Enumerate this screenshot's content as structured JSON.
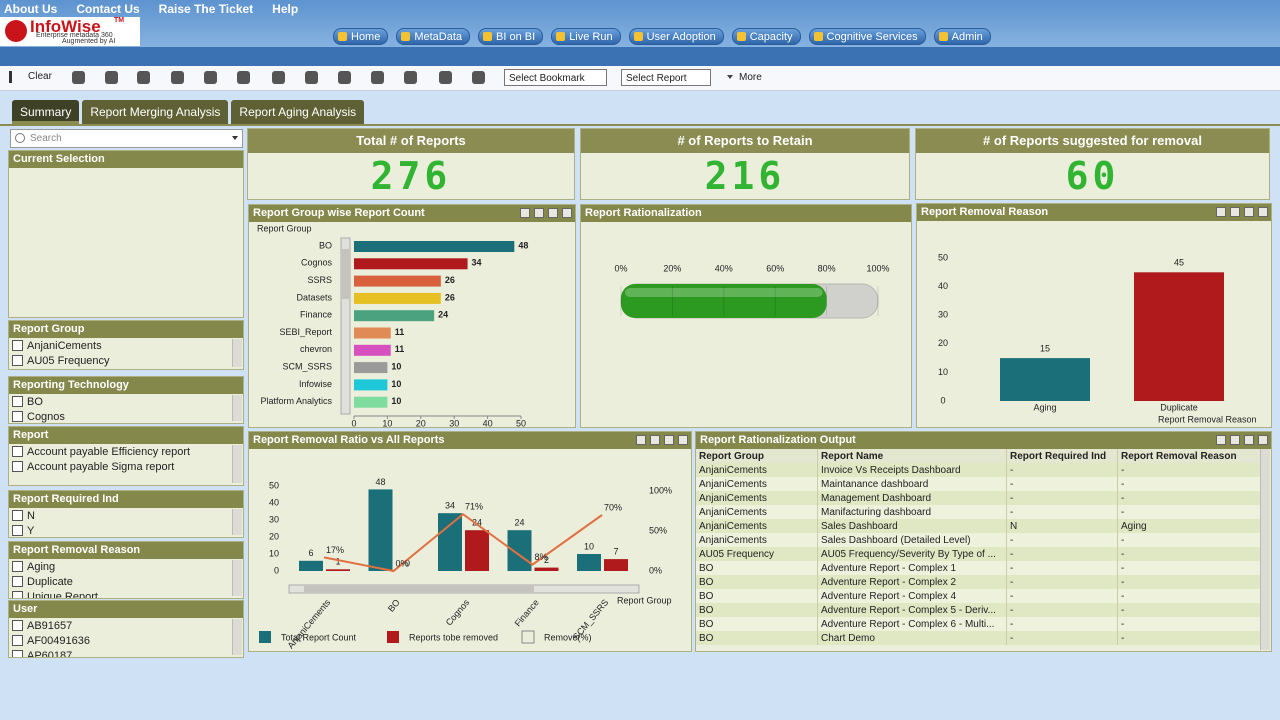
{
  "header": {
    "links": [
      "About Us",
      "Contact Us",
      "Raise The Ticket",
      "Help"
    ],
    "logo": {
      "name": "InfoWise",
      "tm": "TM",
      "tagline1": "Enterprise metadata 360",
      "tagline2": "Augmented by AI"
    },
    "nav": [
      "Home",
      "MetaData",
      "BI on BI",
      "Live Run",
      "User Adoption",
      "Capacity",
      "Cognitive Services",
      "Admin"
    ]
  },
  "toolbar": {
    "clear": "Clear",
    "bookmark": "Select Bookmark",
    "report": "Select Report",
    "more": "More"
  },
  "tabs": [
    "Summary",
    "Report Merging Analysis",
    "Report Aging Analysis"
  ],
  "sidebar": {
    "search": "Search",
    "current_selection": "Current Selection",
    "filters": [
      {
        "title": "Report Group",
        "items": [
          "AnjaniCements",
          "AU05 Frequency"
        ]
      },
      {
        "title": "Reporting Technology",
        "items": [
          "BO",
          "Cognos"
        ]
      },
      {
        "title": "Report",
        "items": [
          "Account payable Efficiency report",
          "Account payable Sigma report"
        ]
      },
      {
        "title": "Report Required Ind",
        "items": [
          "N",
          "Y"
        ]
      },
      {
        "title": "Report Removal Reason",
        "items": [
          "Aging",
          "Duplicate",
          "Unique Report"
        ]
      },
      {
        "title": "User",
        "items": [
          "AB91657",
          "AF00491636",
          "AP60187"
        ]
      }
    ]
  },
  "kpis": [
    {
      "title": "Total # of Reports",
      "value": 276
    },
    {
      "title": "# of Reports to Retain",
      "value": 216
    },
    {
      "title": "# of Reports suggested for removal",
      "value": 60
    }
  ],
  "charts": {
    "group_count": {
      "type": "bar",
      "orientation": "horizontal",
      "title": "Report Group wise Report Count",
      "axis_label": "Report Group",
      "categories": [
        "BO",
        "Cognos",
        "SSRS",
        "Datasets",
        "Finance",
        "SEBI_Report",
        "chevron",
        "SCM_SSRS",
        "Infowise",
        "Platform Analytics"
      ],
      "values": [
        48,
        34,
        26,
        26,
        24,
        11,
        11,
        10,
        10,
        10
      ],
      "colors": [
        "#1b6f78",
        "#b01a1d",
        "#d8603c",
        "#e6bf22",
        "#4aa37e",
        "#e08b55",
        "#d651bf",
        "#9a9a9a",
        "#1ec8d8",
        "#7edc9f"
      ],
      "xlim": [
        0,
        50
      ],
      "xticks": [
        0,
        10,
        20,
        30,
        40,
        50
      ]
    },
    "rationalization": {
      "type": "gauge",
      "title": "Report Rationalization",
      "value": 80,
      "color": "#2c9a20",
      "xlim": [
        0,
        100
      ],
      "xticks": [
        {
          "value": 0,
          "label": "0%"
        },
        {
          "value": 20,
          "label": "20%"
        },
        {
          "value": 40,
          "label": "40%"
        },
        {
          "value": 60,
          "label": "60%"
        },
        {
          "value": 80,
          "label": "80%"
        },
        {
          "value": 100,
          "label": "100%"
        }
      ]
    },
    "removal_reason": {
      "type": "bar",
      "title": "Report Removal Reason",
      "x_label": "Report Removal Reason",
      "categories": [
        "Aging",
        "Duplicate"
      ],
      "values": [
        15,
        45
      ],
      "colors": [
        "#1b6f78",
        "#b01a1d"
      ],
      "ylim": [
        0,
        50
      ],
      "yticks": [
        0,
        10,
        20,
        30,
        40,
        50
      ]
    },
    "removal_ratio": {
      "type": "combo",
      "title": "Report Removal Ratio vs All Reports",
      "x_label": "Report Group",
      "categories": [
        "AnjaniCements",
        "BO",
        "Cognos",
        "Finance",
        "SCM_SSRS"
      ],
      "series": [
        {
          "name": "Total Report Count",
          "color": "#1b6f78",
          "values": [
            6,
            48,
            34,
            24,
            10
          ]
        },
        {
          "name": "Reports tobe removed",
          "color": "#b01a1d",
          "values": [
            1,
            0,
            24,
            2,
            7
          ]
        },
        {
          "name": "Remove(%)",
          "color": "#e07040",
          "axis": "y2",
          "values": [
            17,
            0,
            71,
            8,
            70
          ],
          "value_labels": [
            "17%",
            "0%",
            "71%",
            "8%",
            "70%"
          ]
        }
      ],
      "ylim": [
        0,
        50
      ],
      "yticks": [
        0,
        10,
        20,
        30,
        40,
        50
      ],
      "y2lim": [
        0,
        100
      ],
      "y2ticks": [
        {
          "value": 0,
          "label": "0%"
        },
        {
          "value": 50,
          "label": "50%"
        },
        {
          "value": 100,
          "label": "100%"
        }
      ]
    }
  },
  "table": {
    "title": "Report Rationalization Output",
    "columns": [
      "Report Group",
      "Report Name",
      "Report Required Ind",
      "Report Removal Reason"
    ],
    "rows": [
      [
        "AnjaniCements",
        "Invoice Vs Receipts Dashboard",
        "-",
        "-"
      ],
      [
        "AnjaniCements",
        "Maintanance dashboard",
        "-",
        "-"
      ],
      [
        "AnjaniCements",
        "Management Dashboard",
        "-",
        "-"
      ],
      [
        "AnjaniCements",
        "Manifacturing dashboard",
        "-",
        "-"
      ],
      [
        "AnjaniCements",
        "Sales Dashboard",
        "N",
        "Aging"
      ],
      [
        "AnjaniCements",
        "Sales Dashboard (Detailed Level)",
        "-",
        "-"
      ],
      [
        "AU05 Frequency",
        "AU05 Frequency/Severity By Type of ...",
        "-",
        "-"
      ],
      [
        "BO",
        "Adventure Report - Complex 1",
        "-",
        "-"
      ],
      [
        "BO",
        "Adventure Report - Complex 2",
        "-",
        "-"
      ],
      [
        "BO",
        "Adventure Report - Complex 4",
        "-",
        "-"
      ],
      [
        "BO",
        "Adventure Report - Complex 5 - Deriv...",
        "-",
        "-"
      ],
      [
        "BO",
        "Adventure Report - Complex 6 - Multi...",
        "-",
        "-"
      ],
      [
        "BO",
        "Chart Demo",
        "-",
        "-"
      ]
    ]
  }
}
